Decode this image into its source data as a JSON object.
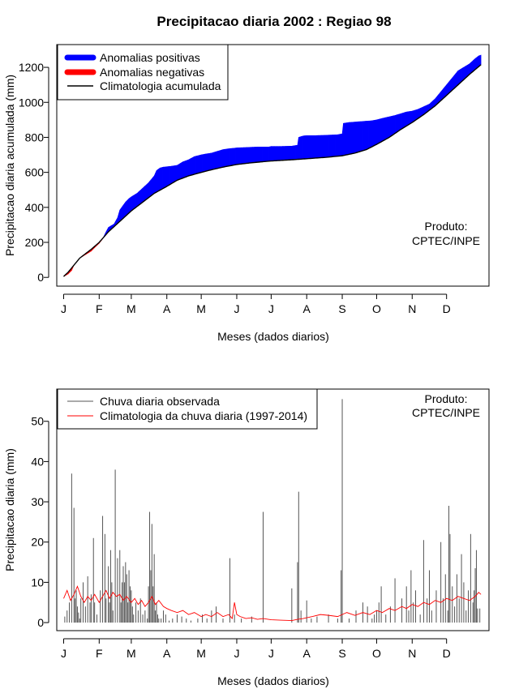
{
  "chart_data": [
    {
      "type": "area",
      "title": "Precipitacao diaria 2002 : Regiao 98",
      "xlabel": "Meses (dados diarios)",
      "ylabel": "Precipitacao diaria acumulada (mm)",
      "xlim": [
        -5,
        372
      ],
      "ylim": [
        -50,
        1330
      ],
      "yticks": [
        0,
        200,
        400,
        600,
        800,
        1000,
        1200
      ],
      "month_ticks": [
        {
          "label": "J",
          "day": 1
        },
        {
          "label": "F",
          "day": 32
        },
        {
          "label": "M",
          "day": 60
        },
        {
          "label": "A",
          "day": 91
        },
        {
          "label": "M",
          "day": 121
        },
        {
          "label": "J",
          "day": 152
        },
        {
          "label": "J",
          "day": 182
        },
        {
          "label": "A",
          "day": 213
        },
        {
          "label": "S",
          "day": 244
        },
        {
          "label": "O",
          "day": 274
        },
        {
          "label": "N",
          "day": 305
        },
        {
          "label": "D",
          "day": 335
        }
      ],
      "legend": {
        "position": "top-left",
        "entries": [
          {
            "label": "Anomalias positivas",
            "color": "#0000ff"
          },
          {
            "label": "Anomalias negativas",
            "color": "#ff0000"
          },
          {
            "label": "Climatologia acumulada",
            "color": "#000000"
          }
        ]
      },
      "annotation": {
        "line1": "Produto:",
        "line2": "CPTEC/INPE",
        "position": "bottom-right"
      },
      "climatology_cumulative": {
        "x": [
          1,
          5,
          10,
          15,
          20,
          25,
          32,
          40,
          50,
          60,
          70,
          80,
          91,
          100,
          110,
          121,
          130,
          140,
          152,
          165,
          182,
          200,
          213,
          230,
          244,
          255,
          265,
          274,
          285,
          295,
          305,
          315,
          325,
          335,
          345,
          355,
          365
        ],
        "y": [
          5,
          30,
          70,
          110,
          135,
          160,
          200,
          260,
          320,
          380,
          430,
          480,
          520,
          555,
          580,
          600,
          615,
          630,
          645,
          655,
          665,
          672,
          678,
          686,
          695,
          710,
          730,
          760,
          800,
          845,
          885,
          930,
          980,
          1040,
          1100,
          1160,
          1215
        ]
      },
      "observed_cumulative": {
        "x": [
          1,
          5,
          8,
          10,
          15,
          20,
          25,
          28,
          32,
          35,
          38,
          40,
          45,
          48,
          50,
          55,
          58,
          60,
          65,
          70,
          75,
          80,
          82,
          85,
          88,
          91,
          95,
          100,
          105,
          110,
          115,
          121,
          125,
          130,
          135,
          140,
          145,
          150,
          152,
          160,
          170,
          180,
          182,
          190,
          200,
          205,
          206,
          210,
          213,
          220,
          230,
          240,
          244,
          245,
          250,
          260,
          270,
          274,
          280,
          290,
          300,
          305,
          310,
          315,
          320,
          325,
          330,
          335,
          340,
          345,
          350,
          355,
          360,
          363,
          365
        ],
        "y": [
          5,
          20,
          40,
          70,
          110,
          130,
          150,
          170,
          195,
          220,
          260,
          285,
          305,
          340,
          385,
          430,
          450,
          460,
          480,
          510,
          540,
          580,
          610,
          625,
          630,
          632,
          635,
          640,
          660,
          672,
          690,
          700,
          705,
          710,
          720,
          730,
          735,
          738,
          740,
          742,
          745,
          745,
          748,
          748,
          750,
          755,
          800,
          808,
          810,
          810,
          812,
          815,
          820,
          880,
          885,
          890,
          895,
          900,
          910,
          925,
          945,
          950,
          960,
          975,
          990,
          1020,
          1060,
          1100,
          1140,
          1180,
          1200,
          1220,
          1250,
          1265,
          1270
        ]
      }
    },
    {
      "type": "bar",
      "xlabel": "Meses (dados diarios)",
      "ylabel": "Precipitacao diaria (mm)",
      "xlim": [
        -5,
        372
      ],
      "ylim": [
        -2,
        58
      ],
      "yticks": [
        0,
        10,
        20,
        30,
        40,
        50
      ],
      "month_ticks": [
        {
          "label": "J",
          "day": 1
        },
        {
          "label": "F",
          "day": 32
        },
        {
          "label": "M",
          "day": 60
        },
        {
          "label": "A",
          "day": 91
        },
        {
          "label": "M",
          "day": 121
        },
        {
          "label": "J",
          "day": 152
        },
        {
          "label": "J",
          "day": 182
        },
        {
          "label": "A",
          "day": 213
        },
        {
          "label": "S",
          "day": 244
        },
        {
          "label": "O",
          "day": 274
        },
        {
          "label": "N",
          "day": 305
        },
        {
          "label": "D",
          "day": 335
        }
      ],
      "legend": {
        "position": "top-left",
        "entries": [
          {
            "label": "Chuva diaria observada",
            "color": "#555555"
          },
          {
            "label": "Climatologia da chuva diaria (1997-2014)",
            "color": "#ff0000"
          }
        ]
      },
      "annotation": {
        "line1": "Produto:",
        "line2": "CPTEC/INPE",
        "position": "top-right"
      },
      "observed_daily": {
        "days": [
          2,
          4,
          6,
          8,
          10,
          11,
          12,
          13,
          14,
          15,
          16,
          18,
          20,
          22,
          24,
          25,
          27,
          28,
          30,
          33,
          35,
          37,
          38,
          40,
          41,
          42,
          43,
          44,
          46,
          48,
          50,
          51,
          52,
          53,
          54,
          55,
          56,
          57,
          58,
          59,
          60,
          61,
          62,
          64,
          66,
          68,
          70,
          72,
          74,
          75,
          76,
          77,
          78,
          79,
          80,
          81,
          82,
          83,
          84,
          86,
          88,
          90,
          93,
          96,
          100,
          104,
          108,
          112,
          118,
          122,
          126,
          130,
          134,
          140,
          146,
          150,
          156,
          165,
          175,
          190,
          200,
          205,
          206,
          208,
          213,
          217,
          222,
          232,
          240,
          243,
          244,
          250,
          256,
          262,
          266,
          270,
          272,
          274,
          276,
          278,
          282,
          286,
          290,
          296,
          300,
          302,
          304,
          306,
          308,
          312,
          315,
          318,
          320,
          322,
          326,
          330,
          332,
          334,
          336,
          337,
          338,
          340,
          342,
          344,
          346,
          348,
          350,
          352,
          354,
          356,
          358,
          359,
          360,
          361,
          362,
          364
        ],
        "values": [
          1.5,
          3,
          5,
          37,
          28.5,
          6,
          8,
          4,
          2.5,
          1,
          6,
          10,
          4,
          11.5,
          5,
          7,
          21,
          5,
          2,
          8,
          26.5,
          22,
          6,
          14,
          5,
          18,
          10,
          3,
          38,
          16,
          18,
          5,
          10,
          14,
          10,
          15,
          12,
          5,
          13,
          9,
          8,
          4,
          2,
          5,
          3,
          6,
          2,
          3,
          1,
          9,
          27.5,
          13,
          24.5,
          9,
          17,
          3,
          5,
          2,
          1,
          1,
          3,
          2,
          0.5,
          1,
          2,
          1.5,
          1,
          0.5,
          1,
          2,
          1,
          3,
          4,
          1,
          16,
          2,
          1,
          1.5,
          27.5,
          0,
          8.5,
          15,
          32.5,
          3,
          5.5,
          1,
          1.5,
          2,
          1,
          13,
          55.5,
          1,
          3,
          5,
          4,
          1,
          2,
          3,
          5,
          9,
          2,
          4,
          11,
          6,
          9,
          3,
          13,
          5,
          8,
          2,
          20.5,
          6,
          13,
          3,
          8,
          20,
          6,
          12,
          3,
          29,
          22,
          9,
          4,
          12,
          6,
          17,
          10,
          3,
          8,
          22,
          5,
          8,
          13.5,
          18,
          3.5,
          3.5
        ]
      },
      "climatology_daily": {
        "x": [
          1,
          4,
          7,
          10,
          13,
          16,
          19,
          22,
          25,
          28,
          32,
          35,
          38,
          41,
          44,
          47,
          50,
          53,
          56,
          60,
          63,
          66,
          69,
          72,
          75,
          78,
          81,
          84,
          88,
          91,
          95,
          100,
          105,
          110,
          115,
          121,
          125,
          130,
          135,
          140,
          145,
          148,
          150,
          152,
          155,
          160,
          165,
          170,
          175,
          182,
          190,
          200,
          205,
          210,
          213,
          218,
          225,
          232,
          240,
          244,
          248,
          255,
          262,
          268,
          274,
          279,
          285,
          290,
          296,
          300,
          305,
          310,
          315,
          320,
          325,
          330,
          335,
          340,
          345,
          350,
          355,
          360,
          363,
          365
        ],
        "y": [
          6,
          8,
          5.5,
          7,
          9,
          6.5,
          5,
          6.5,
          5.5,
          7,
          5,
          6.5,
          8,
          6,
          7.5,
          6.5,
          7,
          5.5,
          6.5,
          5,
          6,
          4.5,
          5.5,
          4,
          5,
          6.5,
          4.5,
          5.5,
          4,
          3.5,
          3,
          2.5,
          3,
          2,
          2.5,
          1.5,
          2,
          1.5,
          2.5,
          1.5,
          2,
          1,
          5,
          2,
          1.5,
          1,
          1.2,
          0.8,
          1,
          0.7,
          0.6,
          0.5,
          0.8,
          1,
          1.2,
          1.5,
          2,
          1.8,
          1.5,
          2,
          2.5,
          1.8,
          2.5,
          2,
          3,
          2.5,
          3.5,
          3,
          4,
          3.5,
          4.5,
          4,
          5,
          4.5,
          5.5,
          5,
          6,
          5.5,
          6.5,
          6,
          5.5,
          6.5,
          7.5,
          7
        ]
      }
    }
  ]
}
